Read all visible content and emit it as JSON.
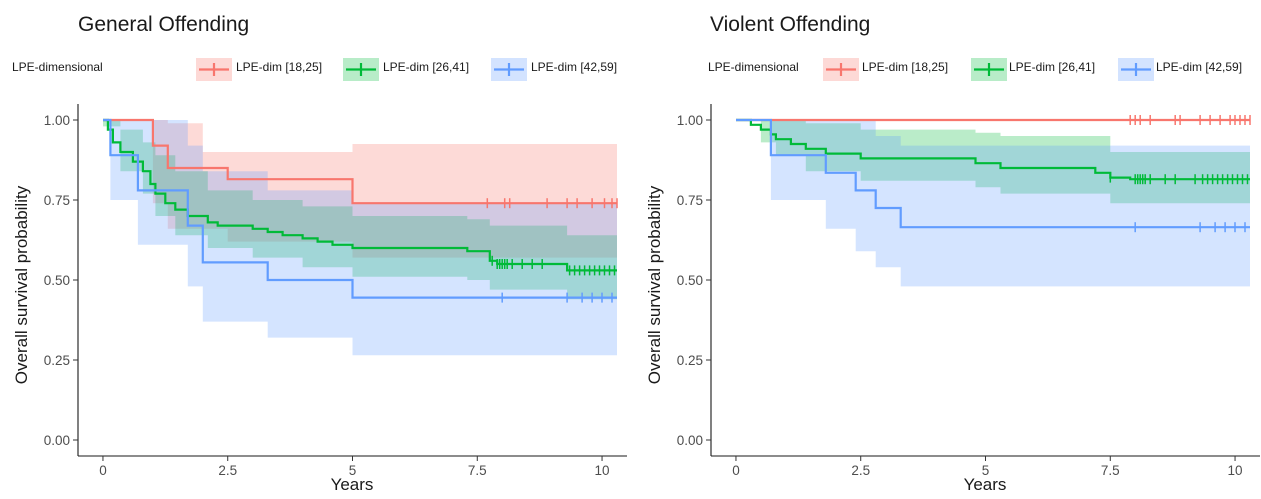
{
  "chart_data": [
    {
      "type": "line",
      "subtype": "kaplan-meier",
      "title": "General Offending",
      "xlabel": "Years",
      "ylabel": "Overall survival probability",
      "xlim": [
        -0.5,
        10.5
      ],
      "ylim": [
        -0.05,
        1.05
      ],
      "xticks": [
        0,
        2.5,
        5,
        7.5,
        10
      ],
      "xtick_labels": [
        "0",
        "2.5",
        "5",
        "7.5",
        "10"
      ],
      "yticks": [
        0,
        0.25,
        0.5,
        0.75,
        1
      ],
      "ytick_labels": [
        "0.00",
        "0.25",
        "0.50",
        "0.75",
        "1.00"
      ],
      "grid": false,
      "legend": {
        "title": "LPE-dimensional",
        "position": "top"
      },
      "series": [
        {
          "name": "LPE-dim [18,25]",
          "color": "#F8766D",
          "steps": [
            [
              0,
              1.0
            ],
            [
              1.0,
              0.92
            ],
            [
              1.3,
              0.85
            ],
            [
              2.5,
              0.815
            ],
            [
              5.0,
              0.74
            ],
            [
              10.3,
              0.74
            ]
          ],
          "band": [
            [
              0,
              1.0,
              1.0
            ],
            [
              1.0,
              0.74,
              1.0
            ],
            [
              1.3,
              0.66,
              0.99
            ],
            [
              2.0,
              0.66,
              0.9
            ],
            [
              2.5,
              0.62,
              0.9
            ],
            [
              5.0,
              0.57,
              0.925
            ],
            [
              10.3,
              0.57,
              0.925
            ]
          ],
          "censors": [
            7.7,
            8.05,
            8.15,
            8.9,
            9.3,
            9.5,
            9.8,
            10.05,
            10.2,
            10.3
          ]
        },
        {
          "name": "LPE-dim [26,41]",
          "color": "#00BA38",
          "steps": [
            [
              0,
              1.0
            ],
            [
              0.1,
              0.97
            ],
            [
              0.2,
              0.93
            ],
            [
              0.35,
              0.9
            ],
            [
              0.6,
              0.87
            ],
            [
              0.8,
              0.84
            ],
            [
              0.95,
              0.8
            ],
            [
              1.05,
              0.77
            ],
            [
              1.25,
              0.74
            ],
            [
              1.45,
              0.72
            ],
            [
              1.7,
              0.7
            ],
            [
              2.1,
              0.68
            ],
            [
              2.3,
              0.67
            ],
            [
              3.0,
              0.66
            ],
            [
              3.3,
              0.65
            ],
            [
              3.6,
              0.64
            ],
            [
              4.0,
              0.63
            ],
            [
              4.3,
              0.62
            ],
            [
              4.6,
              0.61
            ],
            [
              5.0,
              0.6
            ],
            [
              7.3,
              0.59
            ],
            [
              7.75,
              0.56
            ],
            [
              7.9,
              0.55
            ],
            [
              9.3,
              0.53
            ],
            [
              10.3,
              0.53
            ]
          ],
          "band": [
            [
              0,
              0.98,
              1.0
            ],
            [
              0.35,
              0.84,
              0.97
            ],
            [
              0.8,
              0.77,
              0.93
            ],
            [
              1.05,
              0.7,
              0.89
            ],
            [
              1.45,
              0.64,
              0.84
            ],
            [
              2.1,
              0.6,
              0.78
            ],
            [
              3.0,
              0.57,
              0.75
            ],
            [
              4.0,
              0.54,
              0.73
            ],
            [
              5.0,
              0.51,
              0.7
            ],
            [
              7.3,
              0.5,
              0.69
            ],
            [
              7.75,
              0.47,
              0.67
            ],
            [
              9.3,
              0.44,
              0.64
            ],
            [
              10.3,
              0.44,
              0.64
            ]
          ],
          "censors": [
            7.8,
            7.9,
            7.95,
            8.0,
            8.05,
            8.1,
            8.2,
            8.4,
            8.6,
            8.8,
            9.35,
            9.45,
            9.55,
            9.65,
            9.75,
            9.85,
            9.95,
            10.05,
            10.15,
            10.25
          ]
        },
        {
          "name": "LPE-dim [42,59]",
          "color": "#619CFF",
          "steps": [
            [
              0,
              1.0
            ],
            [
              0.15,
              0.89
            ],
            [
              0.7,
              0.78
            ],
            [
              1.7,
              0.67
            ],
            [
              2.0,
              0.555
            ],
            [
              3.3,
              0.5
            ],
            [
              5.0,
              0.445
            ],
            [
              10.3,
              0.445
            ]
          ],
          "band": [
            [
              0,
              1.0,
              1.0
            ],
            [
              0.15,
              0.75,
              1.0
            ],
            [
              0.7,
              0.61,
              1.0
            ],
            [
              1.7,
              0.48,
              0.92
            ],
            [
              2.0,
              0.37,
              0.84
            ],
            [
              3.3,
              0.32,
              0.78
            ],
            [
              5.0,
              0.265,
              0.74
            ],
            [
              10.3,
              0.265,
              0.74
            ]
          ],
          "censors": [
            8.0,
            9.3,
            9.6,
            9.8,
            10.0,
            10.2
          ]
        }
      ]
    },
    {
      "type": "line",
      "subtype": "kaplan-meier",
      "title": "Violent Offending",
      "xlabel": "Years",
      "ylabel": "Overall survival probability",
      "xlim": [
        -0.5,
        10.5
      ],
      "ylim": [
        -0.05,
        1.05
      ],
      "xticks": [
        0,
        2.5,
        5,
        7.5,
        10
      ],
      "xtick_labels": [
        "0",
        "2.5",
        "5",
        "7.5",
        "10"
      ],
      "yticks": [
        0,
        0.25,
        0.5,
        0.75,
        1
      ],
      "ytick_labels": [
        "0.00",
        "0.25",
        "0.50",
        "0.75",
        "1.00"
      ],
      "grid": false,
      "legend": {
        "title": "LPE-dimensional",
        "position": "top"
      },
      "series": [
        {
          "name": "LPE-dim [18,25]",
          "color": "#F8766D",
          "steps": [
            [
              0,
              1.0
            ],
            [
              10.3,
              1.0
            ]
          ],
          "band": [
            [
              0,
              1.0,
              1.0
            ],
            [
              10.3,
              1.0,
              1.0
            ]
          ],
          "censors": [
            7.9,
            8.0,
            8.1,
            8.3,
            8.8,
            8.9,
            9.3,
            9.5,
            9.7,
            9.9,
            10.0,
            10.1,
            10.2,
            10.3
          ]
        },
        {
          "name": "LPE-dim [26,41]",
          "color": "#00BA38",
          "steps": [
            [
              0,
              1.0
            ],
            [
              0.3,
              0.985
            ],
            [
              0.5,
              0.97
            ],
            [
              0.7,
              0.955
            ],
            [
              0.8,
              0.94
            ],
            [
              1.1,
              0.925
            ],
            [
              1.4,
              0.91
            ],
            [
              1.8,
              0.895
            ],
            [
              2.5,
              0.88
            ],
            [
              4.8,
              0.865
            ],
            [
              5.3,
              0.85
            ],
            [
              7.2,
              0.835
            ],
            [
              7.5,
              0.82
            ],
            [
              7.9,
              0.815
            ],
            [
              10.3,
              0.815
            ]
          ],
          "band": [
            [
              0,
              1.0,
              1.0
            ],
            [
              0.5,
              0.93,
              1.0
            ],
            [
              0.8,
              0.89,
              1.0
            ],
            [
              1.4,
              0.84,
              0.99
            ],
            [
              2.5,
              0.81,
              0.97
            ],
            [
              4.8,
              0.79,
              0.96
            ],
            [
              5.3,
              0.77,
              0.95
            ],
            [
              7.5,
              0.74,
              0.9
            ],
            [
              10.3,
              0.74,
              0.9
            ]
          ],
          "censors": [
            7.5,
            8.0,
            8.05,
            8.1,
            8.15,
            8.2,
            8.3,
            8.6,
            8.8,
            9.2,
            9.35,
            9.45,
            9.55,
            9.65,
            9.75,
            9.85,
            9.95,
            10.05,
            10.15,
            10.25
          ]
        },
        {
          "name": "LPE-dim [42,59]",
          "color": "#619CFF",
          "steps": [
            [
              0,
              1.0
            ],
            [
              0.7,
              0.89
            ],
            [
              1.8,
              0.835
            ],
            [
              2.4,
              0.78
            ],
            [
              2.8,
              0.725
            ],
            [
              3.3,
              0.665
            ],
            [
              10.3,
              0.665
            ]
          ],
          "band": [
            [
              0,
              1.0,
              1.0
            ],
            [
              0.7,
              0.75,
              1.0
            ],
            [
              1.8,
              0.66,
              1.0
            ],
            [
              2.4,
              0.59,
              1.0
            ],
            [
              2.8,
              0.54,
              0.95
            ],
            [
              3.3,
              0.48,
              0.92
            ],
            [
              10.3,
              0.48,
              0.92
            ]
          ],
          "censors": [
            8.0,
            9.3,
            9.6,
            9.8,
            10.0,
            10.2
          ]
        }
      ]
    }
  ]
}
